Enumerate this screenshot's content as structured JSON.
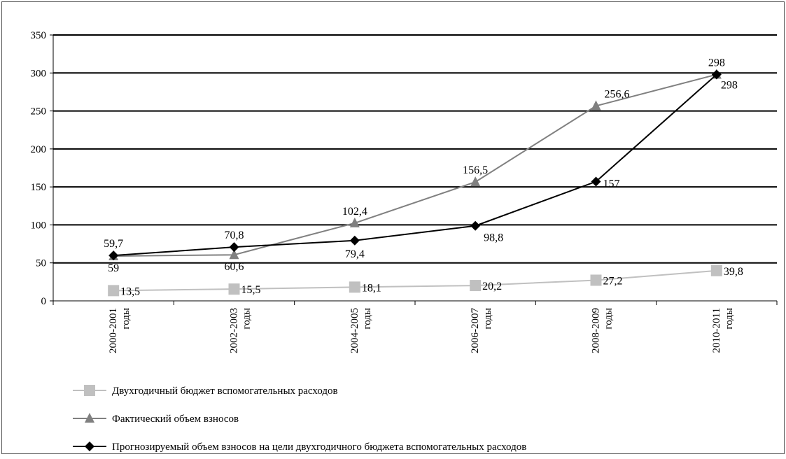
{
  "chart_data": {
    "type": "line",
    "categories": [
      "2000-2001 годы",
      "2002-2003 годы",
      "2004-2005 годы",
      "2006-2007 годы",
      "2008-2009 годы",
      "2010-2011 годы"
    ],
    "category_lines": [
      [
        "2000-2001",
        "годы"
      ],
      [
        "2002-2003",
        "годы"
      ],
      [
        "2004-2005",
        "годы"
      ],
      [
        "2006-2007",
        "годы"
      ],
      [
        "2008-2009",
        "годы"
      ],
      [
        "2010-2011",
        "годы"
      ]
    ],
    "ylim": [
      0,
      350
    ],
    "yticks": [
      0,
      50,
      100,
      150,
      200,
      250,
      300,
      350
    ],
    "ytick_labels": [
      "0",
      "50",
      "100",
      "150",
      "200",
      "250",
      "300",
      "350"
    ],
    "grid": true,
    "legend_position": "bottom-left",
    "series": [
      {
        "name": "Двухгодичный бюджет вспомогательных расходов",
        "values": [
          13.5,
          15.5,
          18.1,
          20.2,
          27.2,
          39.8
        ],
        "labels": [
          "13,5",
          "15,5",
          "18,1",
          "20,2",
          "27,2",
          "39,8"
        ],
        "color": "#c0c0c0",
        "marker": "square"
      },
      {
        "name": "Фактический объем взносов",
        "values": [
          59,
          60.6,
          102.4,
          156.5,
          256.6,
          298
        ],
        "labels": [
          "59",
          "60,6",
          "102,4",
          "156,5",
          "256,6",
          "298"
        ],
        "color": "#808080",
        "marker": "triangle"
      },
      {
        "name": "Прогнозируемый объем взносов на цели двухгодичного бюджета вспомогательных расходов",
        "values": [
          59.7,
          70.8,
          79.4,
          98.8,
          157,
          298
        ],
        "labels": [
          "59,7",
          "70,8",
          "79,4",
          "98,8",
          "157",
          "298"
        ],
        "color": "#000000",
        "marker": "diamond"
      }
    ]
  }
}
